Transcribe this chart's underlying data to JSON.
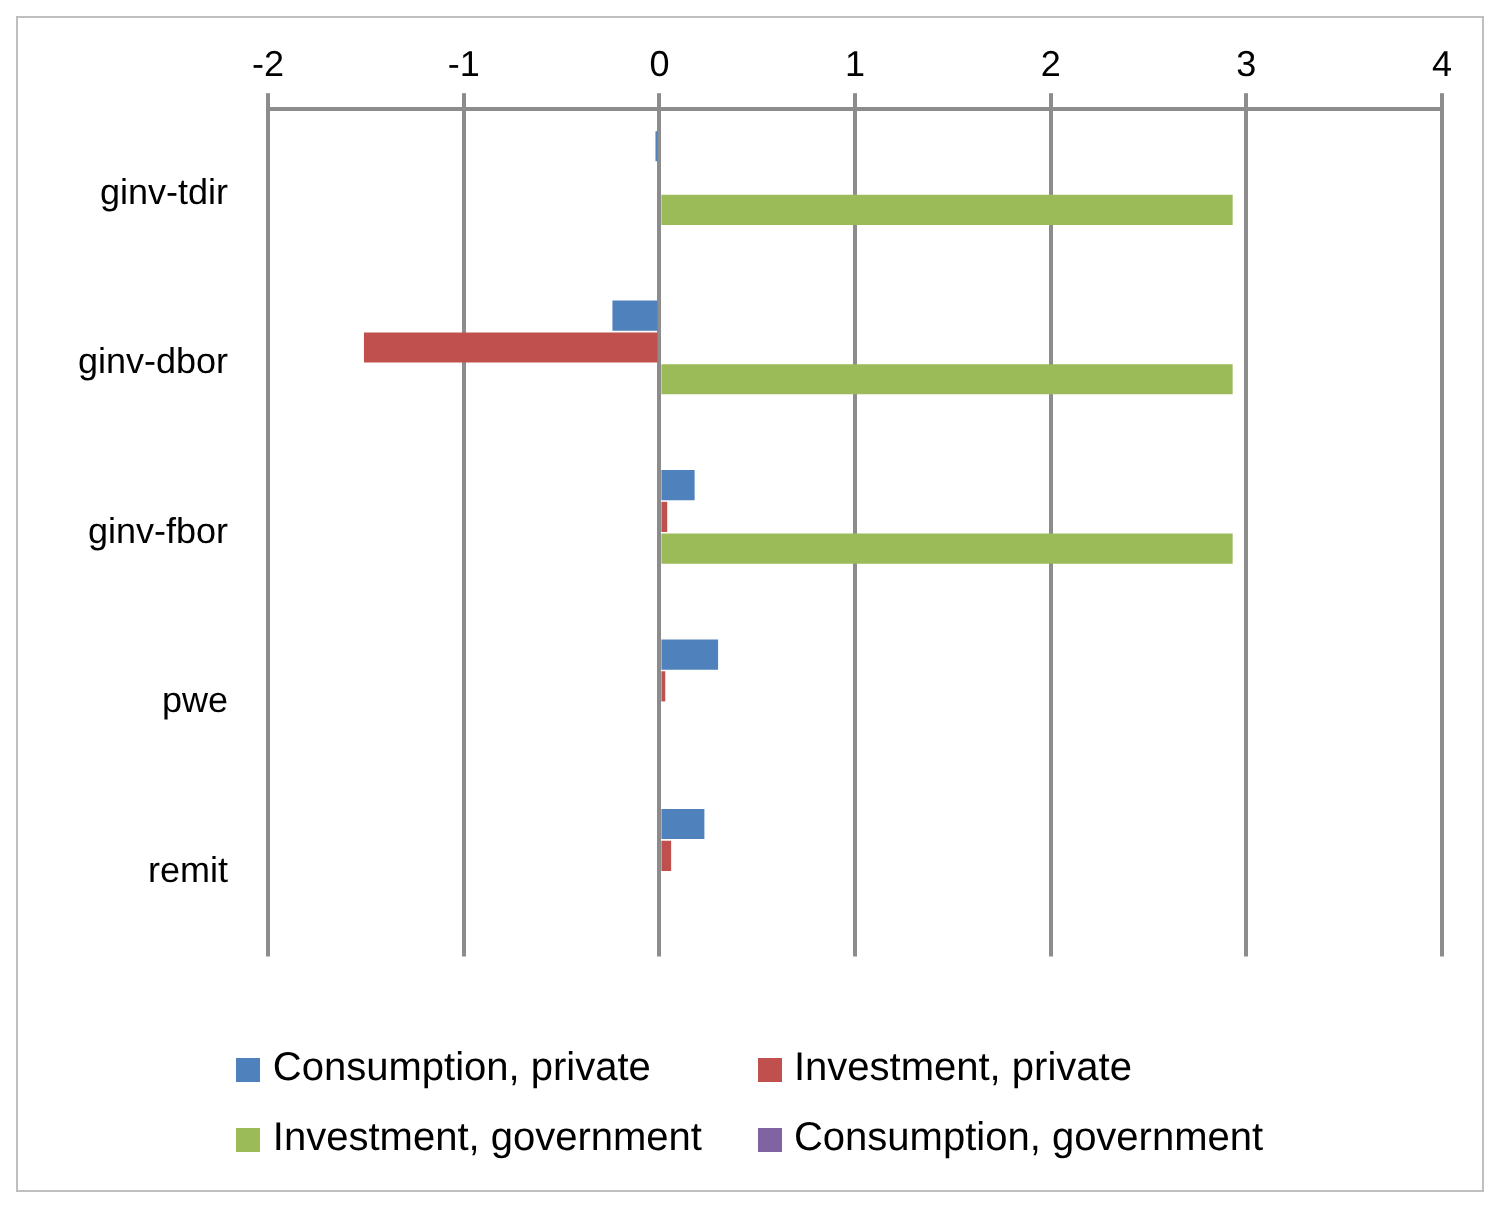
{
  "chart_data": {
    "type": "bar",
    "orientation": "horizontal",
    "categories": [
      "ginv-tdir",
      "ginv-dbor",
      "ginv-fbor",
      "pwe",
      "remit"
    ],
    "series": [
      {
        "name": "Consumption, private",
        "color": "#4f81bd",
        "values": [
          -0.02,
          -0.24,
          0.18,
          0.3,
          0.23
        ]
      },
      {
        "name": "Investment, private",
        "color": "#c0504d",
        "values": [
          0,
          -1.51,
          0.04,
          0.03,
          0.06
        ]
      },
      {
        "name": "Investment, government",
        "color": "#9bbb59",
        "values": [
          2.93,
          2.93,
          2.93,
          0,
          0
        ]
      },
      {
        "name": "Consumption, government",
        "color": "#8064a2",
        "values": [
          0,
          0,
          0,
          0,
          0
        ]
      }
    ],
    "xlim": [
      -2,
      4
    ],
    "xticks": [
      -2,
      -1,
      0,
      1,
      2,
      3,
      4
    ],
    "grid": "x",
    "legend": "bottom"
  }
}
